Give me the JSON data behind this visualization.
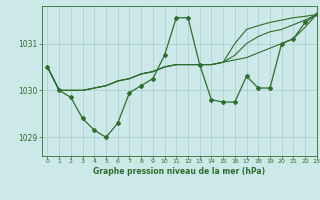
{
  "title": "Graphe pression niveau de la mer (hPa)",
  "bg_color": "#cce8e8",
  "line_color": "#2d6e2d",
  "grid_color": "#aacccc",
  "xlim": [
    -0.5,
    23
  ],
  "ylim": [
    1028.6,
    1031.8
  ],
  "yticks": [
    1029,
    1030,
    1031
  ],
  "xticks": [
    0,
    1,
    2,
    3,
    4,
    5,
    6,
    7,
    8,
    9,
    10,
    11,
    12,
    13,
    14,
    15,
    16,
    17,
    18,
    19,
    20,
    21,
    22,
    23
  ],
  "series0": [
    1030.5,
    1030.0,
    1029.85,
    1029.4,
    1029.15,
    1029.0,
    1029.3,
    1029.95,
    1030.1,
    1030.25,
    1030.75,
    1031.55,
    1031.55,
    1030.55,
    1029.8,
    1029.75,
    1029.75,
    1030.3,
    1030.05,
    1030.05,
    1031.0,
    1031.1,
    1031.45,
    1031.62
  ],
  "series1": [
    1030.5,
    1030.0,
    1030.0,
    1030.0,
    1030.05,
    1030.1,
    1030.2,
    1030.25,
    1030.35,
    1030.4,
    1030.5,
    1030.55,
    1030.55,
    1030.55,
    1030.55,
    1030.6,
    1030.65,
    1030.7,
    1030.8,
    1030.9,
    1031.0,
    1031.1,
    1031.35,
    1031.62
  ],
  "series2": [
    1030.5,
    1030.0,
    1030.0,
    1030.0,
    1030.05,
    1030.1,
    1030.2,
    1030.25,
    1030.35,
    1030.4,
    1030.5,
    1030.55,
    1030.55,
    1030.55,
    1030.55,
    1030.6,
    1030.75,
    1031.0,
    1031.15,
    1031.25,
    1031.3,
    1031.4,
    1031.5,
    1031.62
  ],
  "series3": [
    1030.5,
    1030.0,
    1030.0,
    1030.0,
    1030.05,
    1030.1,
    1030.2,
    1030.25,
    1030.35,
    1030.4,
    1030.5,
    1030.55,
    1030.55,
    1030.55,
    1030.55,
    1030.6,
    1031.0,
    1031.3,
    1031.38,
    1031.45,
    1031.5,
    1031.55,
    1031.58,
    1031.62
  ]
}
